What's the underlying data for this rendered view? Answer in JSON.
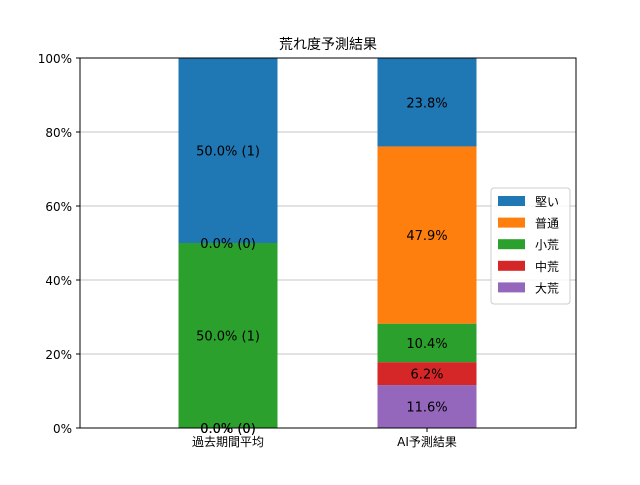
{
  "chart_data": {
    "type": "bar",
    "stacked": true,
    "title": "荒れ度予測結果",
    "categories": [
      "過去期間平均",
      "AI予測結果"
    ],
    "ylim": [
      0,
      100
    ],
    "yticks": [
      0,
      20,
      40,
      60,
      80,
      100
    ],
    "ytick_labels": [
      "0%",
      "20%",
      "40%",
      "60%",
      "80%",
      "100%"
    ],
    "grid": "y",
    "legend_position": "center-right",
    "series": [
      {
        "name": "大荒",
        "color": "#9467bd",
        "values": [
          0.0,
          11.6
        ],
        "labels": [
          "0.0% (0)",
          "11.6%"
        ]
      },
      {
        "name": "中荒",
        "color": "#d62728",
        "values": [
          0.0,
          6.2
        ],
        "labels": [
          "0.0% (0)",
          "6.2%"
        ]
      },
      {
        "name": "小荒",
        "color": "#2ca02c",
        "values": [
          50.0,
          10.4
        ],
        "labels": [
          "50.0% (1)",
          "10.4%"
        ]
      },
      {
        "name": "普通",
        "color": "#ff7f0e",
        "values": [
          0.0,
          47.9
        ],
        "labels": [
          "0.0% (0)",
          "47.9%"
        ]
      },
      {
        "name": "堅い",
        "color": "#1f77b4",
        "values": [
          50.0,
          23.8
        ],
        "labels": [
          "50.0% (1)",
          "23.8%"
        ]
      }
    ],
    "legend_order": [
      "堅い",
      "普通",
      "小荒",
      "中荒",
      "大荒"
    ]
  }
}
